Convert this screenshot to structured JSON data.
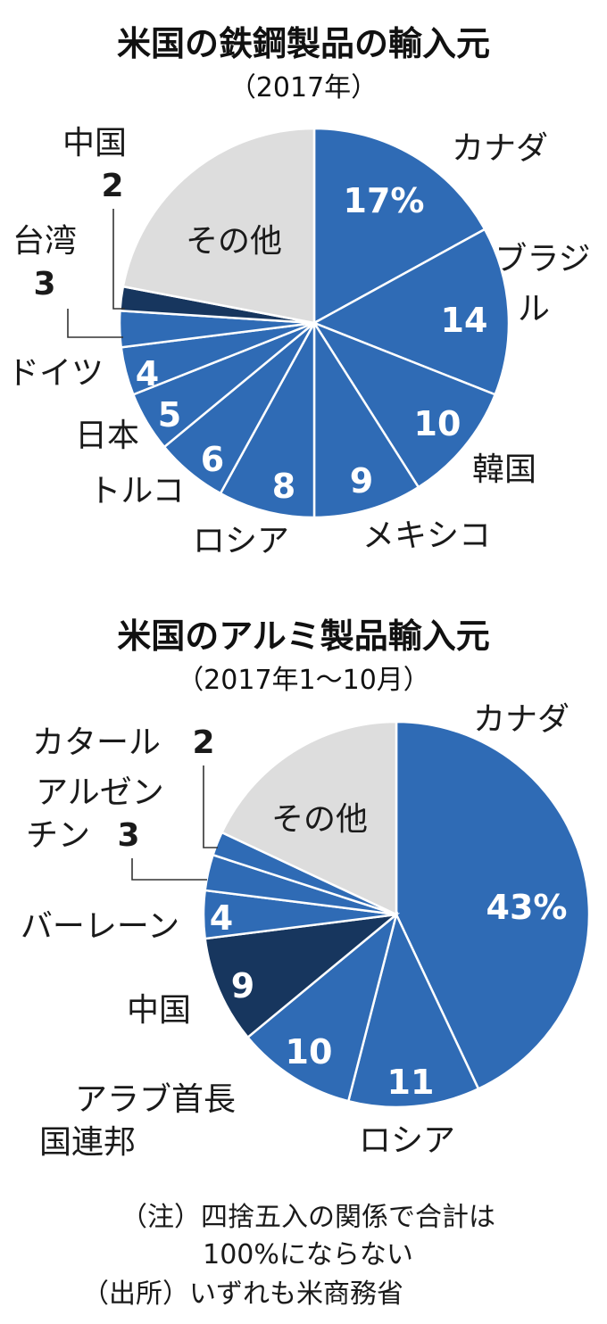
{
  "colors": {
    "blue": "#2f6bb5",
    "dark": "#17365e",
    "other": "#dddddd"
  },
  "chart_data": [
    {
      "type": "pie",
      "title": "米国の鉄鋼製品の輸入元",
      "subtitle": "（2017年）",
      "unit": "%",
      "slices": [
        {
          "name": "カナダ",
          "value": 17,
          "value_label": "17%"
        },
        {
          "name": "ブラジル",
          "value": 14,
          "value_label": "14"
        },
        {
          "name": "韓国",
          "value": 10,
          "value_label": "10"
        },
        {
          "name": "メキシコ",
          "value": 9,
          "value_label": "9"
        },
        {
          "name": "ロシア",
          "value": 8,
          "value_label": "8"
        },
        {
          "name": "トルコ",
          "value": 6,
          "value_label": "6"
        },
        {
          "name": "日本",
          "value": 5,
          "value_label": "5"
        },
        {
          "name": "ドイツ",
          "value": 4,
          "value_label": "4"
        },
        {
          "name": "台湾",
          "value": 3,
          "value_label": "3"
        },
        {
          "name": "中国",
          "value": 2,
          "value_label": "2"
        },
        {
          "name": "その他",
          "value": 22
        }
      ]
    },
    {
      "type": "pie",
      "title": "米国のアルミ製品輸入元",
      "subtitle": "（2017年1～10月）",
      "unit": "%",
      "slices": [
        {
          "name": "カナダ",
          "value": 43,
          "value_label": "43%"
        },
        {
          "name": "ロシア",
          "value": 11,
          "value_label": "11"
        },
        {
          "name": "アラブ首長国連邦",
          "value": 10,
          "value_label": "10"
        },
        {
          "name": "中国",
          "value": 9,
          "value_label": "9"
        },
        {
          "name": "バーレーン",
          "value": 4,
          "value_label": "4"
        },
        {
          "name": "アルゼンチン",
          "value": 3,
          "value_label": "3"
        },
        {
          "name": "カタール",
          "value": 2,
          "value_label": "2"
        },
        {
          "name": "その他",
          "value": 18
        }
      ]
    }
  ],
  "notes": {
    "line1": "（注）四捨五入の関係で合計は",
    "line2": "100%にならない",
    "line3": "（出所）いずれも米商務省"
  }
}
